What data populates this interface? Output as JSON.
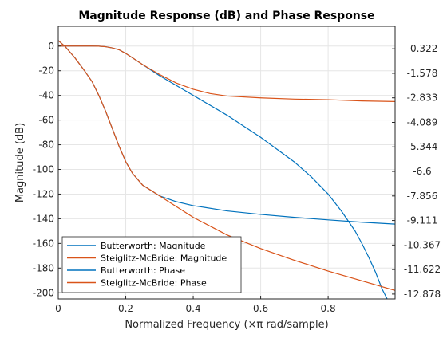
{
  "chart_data": {
    "type": "line",
    "title": "Magnitude Response (dB) and Phase Response",
    "xlabel": "Normalized Frequency (×π rad/sample)",
    "ylabel": "Magnitude (dB)",
    "xlim": [
      0,
      0.9985
    ],
    "ylim_left": [
      -205,
      16
    ],
    "ylim_right": [
      -13.127,
      0.827
    ],
    "x_ticks": [
      0,
      0.2,
      0.4,
      0.6,
      0.8
    ],
    "x_tick_labels": [
      "0",
      "0.2",
      "0.4",
      "0.6",
      "0.8"
    ],
    "y_left_ticks": [
      0,
      -20,
      -40,
      -60,
      -80,
      -100,
      -120,
      -140,
      -160,
      -180,
      -200
    ],
    "y_left_tick_labels": [
      "0",
      "-20",
      "-40",
      "-60",
      "-80",
      "-100",
      "-120",
      "-140",
      "-160",
      "-180",
      "-200"
    ],
    "y_right_ticks": [
      -0.322,
      -1.578,
      -2.833,
      -4.089,
      -5.344,
      -6.6,
      -7.856,
      -9.111,
      -10.367,
      -11.622,
      -12.878
    ],
    "y_right_tick_labels": [
      "-0.322",
      "-1.578",
      "-2.833",
      "-4.089",
      "-5.344",
      "-6.6",
      "-7.856",
      "-9.111",
      "-10.367",
      "-11.622",
      "-12.878"
    ],
    "grid": true,
    "legend_position": "bottom-left",
    "series": [
      {
        "name": "Butterworth: Magnitude",
        "axis": "left",
        "color": "#0072BD",
        "x": [
          0,
          0.05,
          0.1,
          0.12,
          0.14,
          0.16,
          0.18,
          0.2,
          0.22,
          0.25,
          0.3,
          0.35,
          0.4,
          0.45,
          0.5,
          0.55,
          0.6,
          0.65,
          0.7,
          0.75,
          0.8,
          0.84,
          0.88,
          0.9,
          0.92,
          0.94,
          0.96,
          0.975
        ],
        "values": [
          0,
          0,
          0,
          -0.1,
          -0.5,
          -1.5,
          -3,
          -6,
          -9.5,
          -15,
          -24,
          -32,
          -40,
          -48,
          -56,
          -65,
          -74,
          -84,
          -94,
          -106,
          -120,
          -134,
          -150,
          -160,
          -171,
          -183,
          -197,
          -205
        ]
      },
      {
        "name": "Steiglitz-McBride: Magnitude",
        "axis": "left",
        "color": "#D95319",
        "x": [
          0,
          0.05,
          0.1,
          0.12,
          0.14,
          0.16,
          0.18,
          0.2,
          0.22,
          0.25,
          0.3,
          0.35,
          0.4,
          0.45,
          0.5,
          0.6,
          0.7,
          0.8,
          0.9,
          1.0
        ],
        "values": [
          0,
          0,
          0,
          -0.1,
          -0.5,
          -1.5,
          -3,
          -6,
          -9.5,
          -15,
          -23,
          -30,
          -35,
          -38.5,
          -40.5,
          -42,
          -43,
          -43.5,
          -44.5,
          -45
        ]
      },
      {
        "name": "Butterworth: Phase",
        "axis": "right",
        "color": "#0072BD",
        "x": [
          0,
          0.02,
          0.05,
          0.08,
          0.1,
          0.12,
          0.14,
          0.16,
          0.18,
          0.2,
          0.22,
          0.25,
          0.3,
          0.35,
          0.4,
          0.5,
          0.6,
          0.7,
          0.8,
          0.9,
          1.0
        ],
        "values": [
          0.1,
          -0.2,
          -0.8,
          -1.5,
          -2.0,
          -2.7,
          -3.5,
          -4.4,
          -5.3,
          -6.1,
          -6.7,
          -7.3,
          -7.85,
          -8.15,
          -8.35,
          -8.62,
          -8.8,
          -8.95,
          -9.08,
          -9.2,
          -9.3
        ]
      },
      {
        "name": "Steiglitz-McBride: Phase",
        "axis": "right",
        "color": "#D95319",
        "x": [
          0,
          0.02,
          0.05,
          0.08,
          0.1,
          0.12,
          0.14,
          0.16,
          0.18,
          0.2,
          0.22,
          0.25,
          0.3,
          0.35,
          0.4,
          0.5,
          0.6,
          0.7,
          0.8,
          0.9,
          1.0
        ],
        "values": [
          0.1,
          -0.2,
          -0.8,
          -1.5,
          -2.0,
          -2.7,
          -3.5,
          -4.4,
          -5.3,
          -6.1,
          -6.7,
          -7.3,
          -7.85,
          -8.4,
          -8.95,
          -9.85,
          -10.55,
          -11.15,
          -11.7,
          -12.2,
          -12.7
        ]
      }
    ]
  },
  "colors": {
    "axes": "#262626",
    "grid": "#e6e6e6",
    "background": "#ffffff"
  }
}
